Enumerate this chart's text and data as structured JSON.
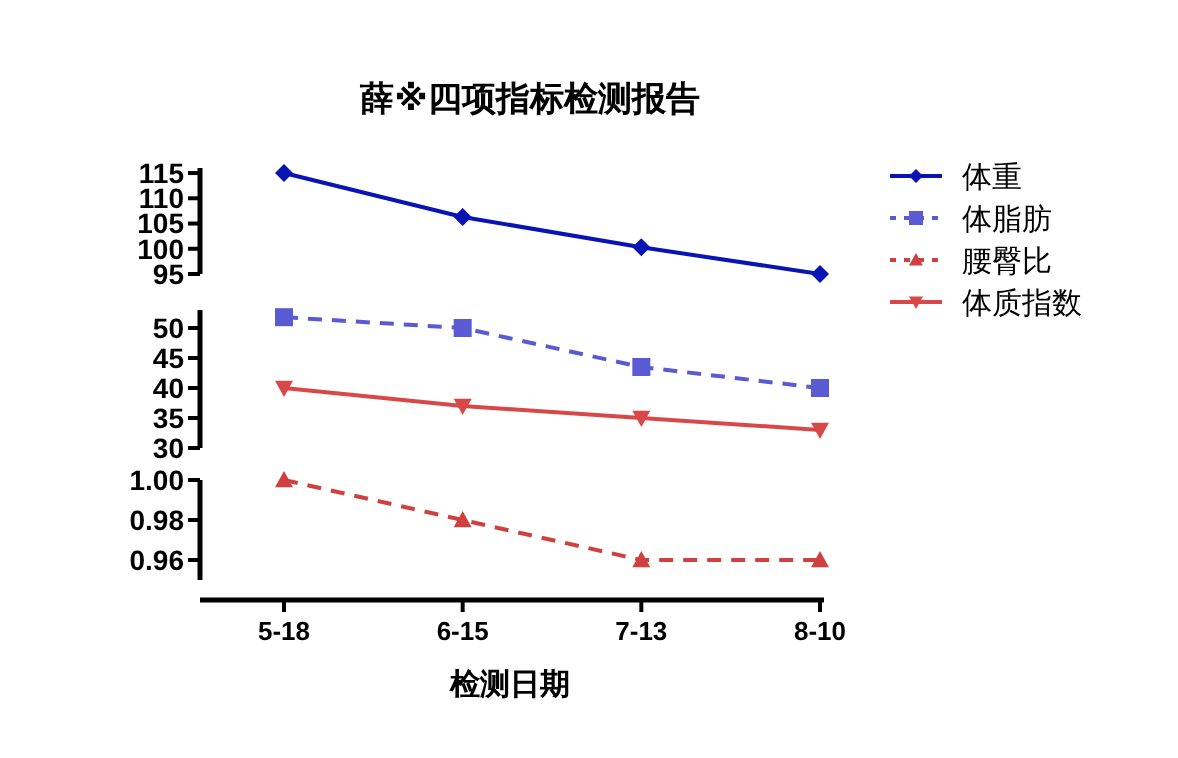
{
  "chart_data": [
    {
      "type": "line",
      "title": "薛※四项指标检测报告",
      "ylim": [
        95,
        116
      ],
      "yticks": [
        95,
        100,
        105,
        110,
        115
      ],
      "tick_labels": "y",
      "legend": "right",
      "grid": false,
      "series": [
        {
          "name": "体重",
          "color": "#0a14b4",
          "values": [
            115,
            106.3,
            100.3,
            95
          ],
          "marker": "diamond",
          "line_style": "solid"
        }
      ]
    },
    {
      "type": "line",
      "ylim": [
        30,
        53
      ],
      "yticks": [
        30,
        35,
        40,
        45,
        50
      ],
      "tick_labels": "y",
      "legend": "right",
      "grid": false,
      "series": [
        {
          "name": "体脂肪",
          "color": "#5a5ad2",
          "values": [
            51.8,
            50,
            43.5,
            40
          ],
          "marker": "square",
          "line_style": "dashed"
        },
        {
          "name": "体质指数",
          "color": "#d84848",
          "values": [
            40,
            37,
            35,
            33
          ],
          "marker": "triangle-down",
          "line_style": "solid"
        }
      ]
    },
    {
      "type": "line",
      "xlabel": "检测日期",
      "categories": [
        "5-18",
        "6-15",
        "7-13",
        "8-10"
      ],
      "ylim": [
        0.95,
        1.0
      ],
      "yticks": [
        {
          "value": 0.96,
          "label": "0.96"
        },
        {
          "value": 0.98,
          "label": "0.98"
        },
        {
          "value": 1.0,
          "label": "1.00"
        }
      ],
      "legend": "right",
      "grid": false,
      "series": [
        {
          "name": "腰臀比",
          "color": "#d04040",
          "values": [
            1.0,
            0.98,
            0.96,
            0.96
          ],
          "marker": "triangle",
          "line_style": "dashed"
        }
      ]
    }
  ]
}
